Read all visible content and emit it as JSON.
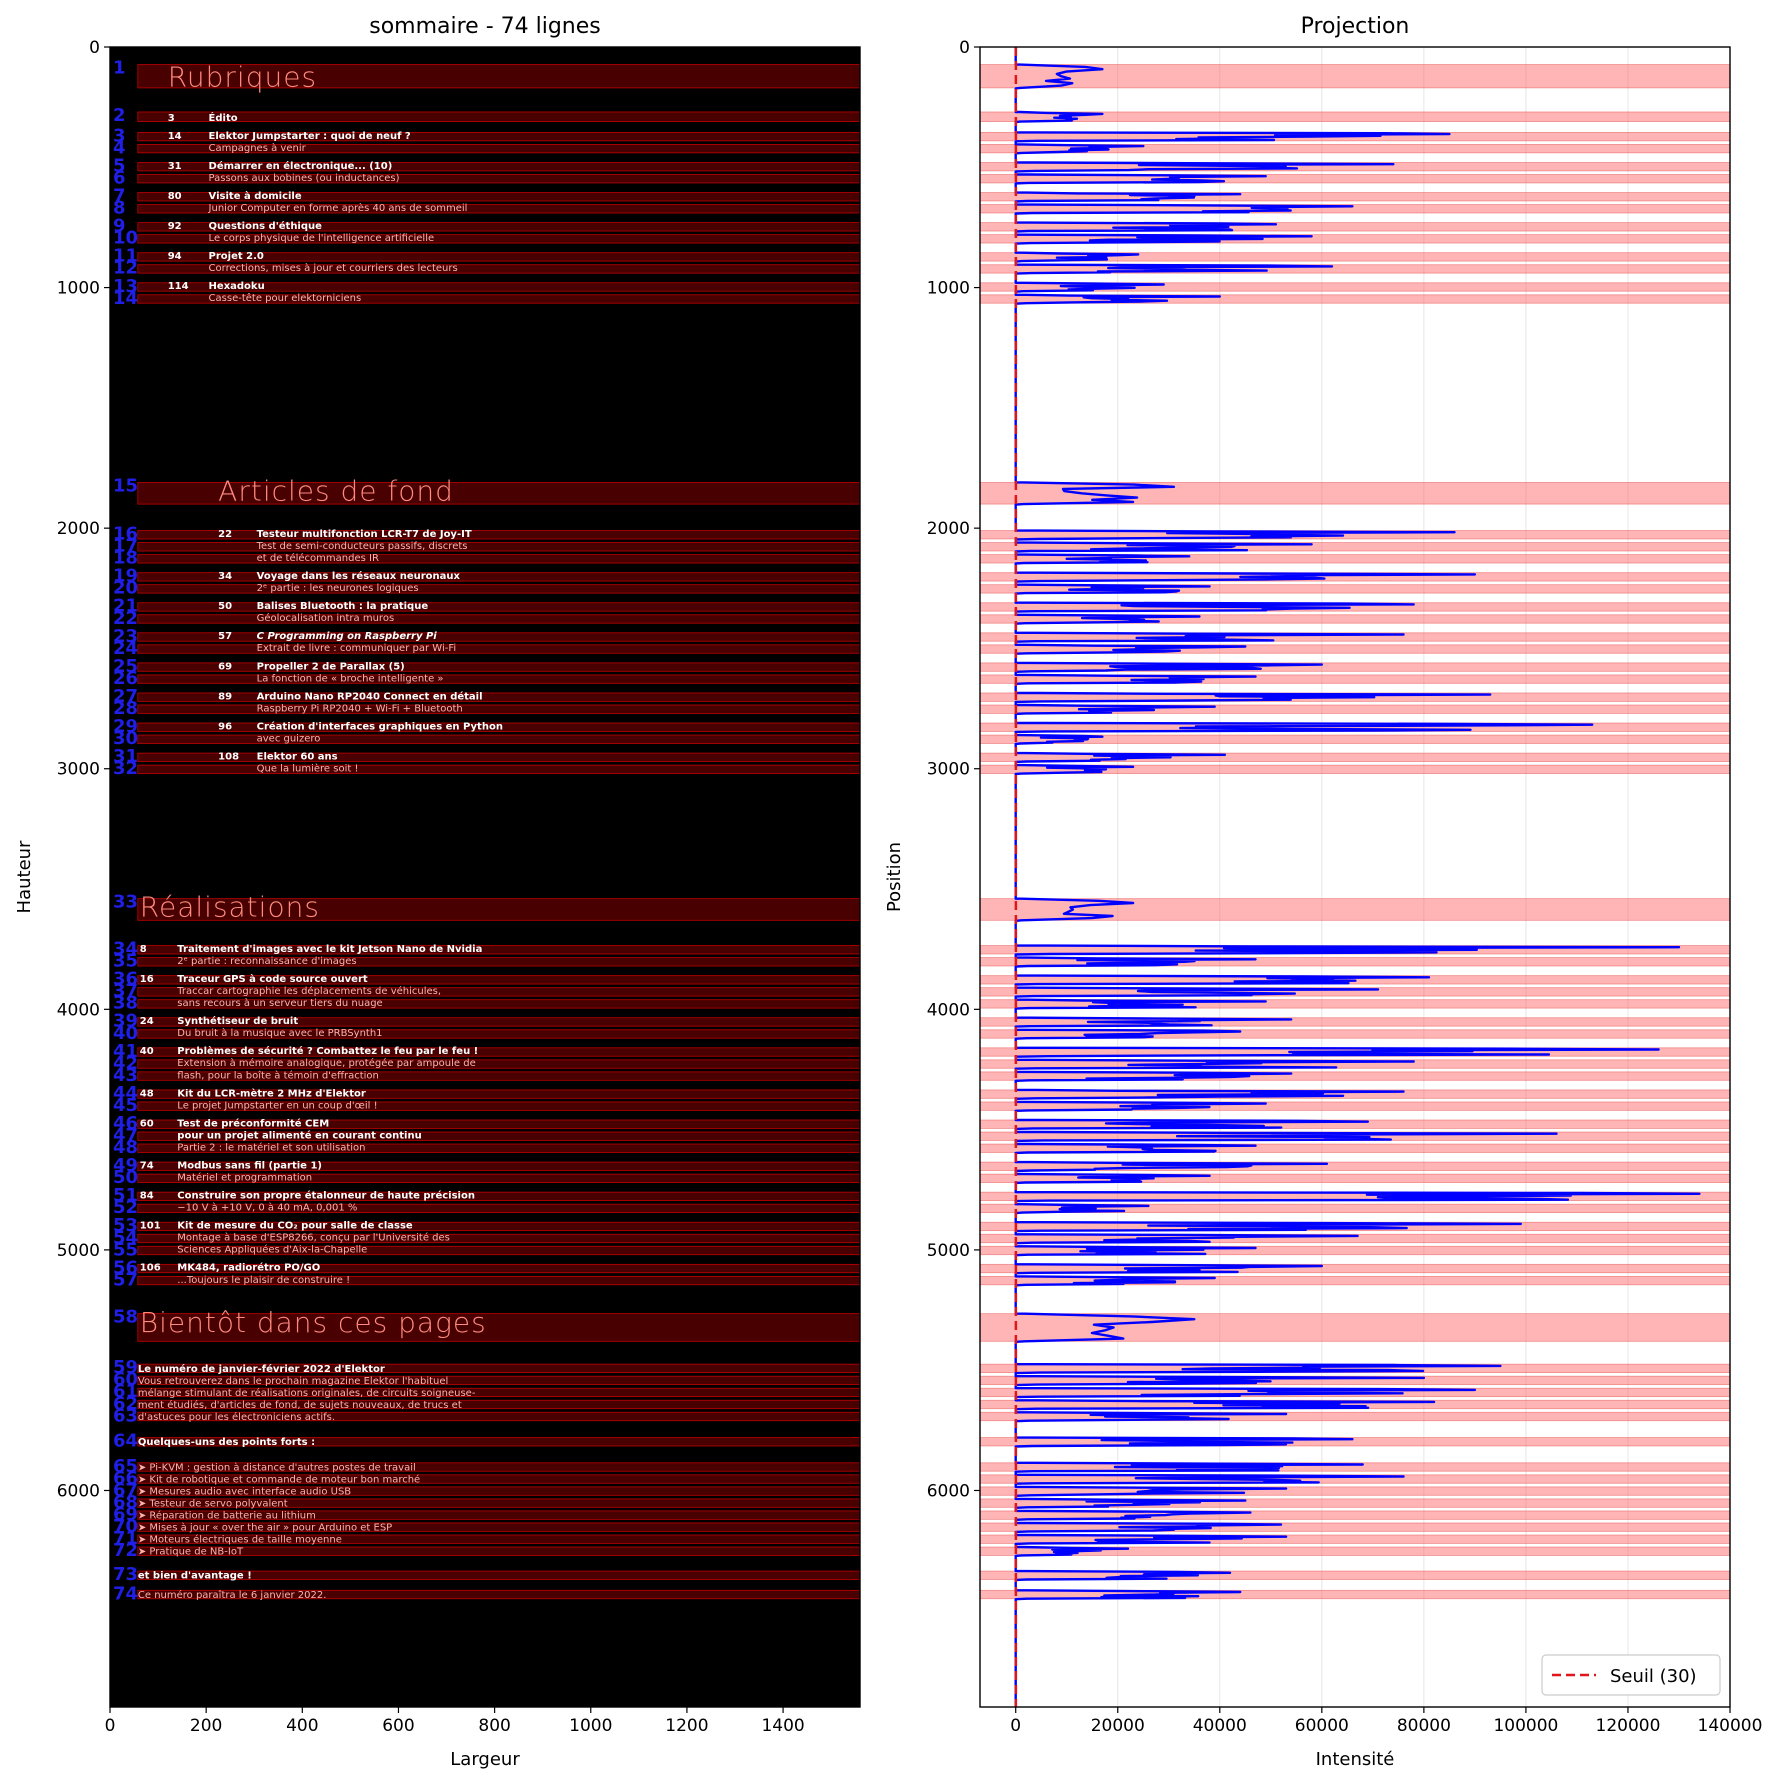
{
  "left_panel": {
    "title": "sommaire - 74 lignes",
    "xlabel": "Largeur",
    "ylabel": "Hauteur",
    "xlim": [
      0,
      1560
    ],
    "ylim": [
      6900,
      0
    ],
    "xticks": [
      0,
      200,
      400,
      600,
      800,
      1000,
      1200,
      1400
    ],
    "yticks": [
      0,
      1000,
      2000,
      3000,
      4000,
      5000,
      6000
    ],
    "sections": [
      {
        "text": "Rubriques",
        "x": 120,
        "y": 122
      },
      {
        "text": "Articles de fond",
        "x": 225,
        "y": 1843
      },
      {
        "text": "Réalisations",
        "x": 62,
        "y": 3573
      },
      {
        "text": "Bientôt dans ces pages",
        "x": 62,
        "y": 5300
      }
    ],
    "toc": [
      {
        "x": 120,
        "y": 290,
        "text": "3",
        "bold": true
      },
      {
        "x": 205,
        "y": 290,
        "text": "Édito",
        "bold": true
      },
      {
        "x": 120,
        "y": 365,
        "text": "14",
        "bold": true
      },
      {
        "x": 205,
        "y": 365,
        "text": "Elektor Jumpstarter : quoi de neuf ?",
        "bold": true
      },
      {
        "x": 205,
        "y": 415,
        "text": "Campagnes à venir"
      },
      {
        "x": 120,
        "y": 490,
        "text": "31",
        "bold": true
      },
      {
        "x": 205,
        "y": 490,
        "text": "Démarrer en électronique... (10)",
        "bold": true
      },
      {
        "x": 205,
        "y": 540,
        "text": "Passons aux bobines (ou inductances)"
      },
      {
        "x": 120,
        "y": 615,
        "text": "80",
        "bold": true
      },
      {
        "x": 205,
        "y": 615,
        "text": "Visite à domicile",
        "bold": true
      },
      {
        "x": 205,
        "y": 665,
        "text": "Junior Computer en forme après 40 ans de sommeil"
      },
      {
        "x": 120,
        "y": 740,
        "text": "92",
        "bold": true
      },
      {
        "x": 205,
        "y": 740,
        "text": "Questions d'éthique",
        "bold": true
      },
      {
        "x": 205,
        "y": 790,
        "text": "Le corps physique de l'intelligence artificielle"
      },
      {
        "x": 120,
        "y": 865,
        "text": "94",
        "bold": true
      },
      {
        "x": 205,
        "y": 865,
        "text": "Projet 2.0",
        "bold": true
      },
      {
        "x": 205,
        "y": 915,
        "text": "Corrections, mises à jour et courriers des lecteurs"
      },
      {
        "x": 120,
        "y": 990,
        "text": "114",
        "bold": true
      },
      {
        "x": 205,
        "y": 990,
        "text": "Hexadoku",
        "bold": true
      },
      {
        "x": 205,
        "y": 1040,
        "text": "Casse-tête pour elektorniciens"
      },
      {
        "x": 225,
        "y": 2020,
        "text": "22",
        "bold": true
      },
      {
        "x": 305,
        "y": 2020,
        "text": "Testeur multifonction LCR-T7 de Joy-IT",
        "bold": true
      },
      {
        "x": 305,
        "y": 2070,
        "text": "Test de semi-conducteurs passifs, discrets"
      },
      {
        "x": 305,
        "y": 2120,
        "text": "et de télécommandes IR"
      },
      {
        "x": 225,
        "y": 2195,
        "text": "34",
        "bold": true
      },
      {
        "x": 305,
        "y": 2195,
        "text": "Voyage dans les réseaux neuronaux",
        "bold": true
      },
      {
        "x": 305,
        "y": 2245,
        "text": "2ᵉ partie : les neurones logiques"
      },
      {
        "x": 225,
        "y": 2320,
        "text": "50",
        "bold": true
      },
      {
        "x": 305,
        "y": 2320,
        "text": "Balises Bluetooth : la pratique",
        "bold": true
      },
      {
        "x": 305,
        "y": 2370,
        "text": "Géolocalisation intra muros"
      },
      {
        "x": 225,
        "y": 2445,
        "text": "57",
        "bold": true
      },
      {
        "x": 305,
        "y": 2445,
        "text": "C Programming on Raspberry Pi",
        "bold": true,
        "italic": true
      },
      {
        "x": 305,
        "y": 2495,
        "text": "Extrait de livre : communiquer par Wi-Fi"
      },
      {
        "x": 225,
        "y": 2570,
        "text": "69",
        "bold": true
      },
      {
        "x": 305,
        "y": 2570,
        "text": "Propeller 2 de Parallax (5)",
        "bold": true
      },
      {
        "x": 305,
        "y": 2620,
        "text": "La fonction de « broche intelligente »"
      },
      {
        "x": 225,
        "y": 2695,
        "text": "89",
        "bold": true
      },
      {
        "x": 305,
        "y": 2695,
        "text": "Arduino Nano RP2040 Connect en détail",
        "bold": true
      },
      {
        "x": 305,
        "y": 2745,
        "text": "Raspberry Pi RP2040 + Wi-Fi + Bluetooth"
      },
      {
        "x": 225,
        "y": 2820,
        "text": "96",
        "bold": true
      },
      {
        "x": 305,
        "y": 2820,
        "text": "Création d'interfaces graphiques en Python",
        "bold": true
      },
      {
        "x": 305,
        "y": 2870,
        "text": "avec guizero"
      },
      {
        "x": 225,
        "y": 2945,
        "text": "108",
        "bold": true
      },
      {
        "x": 305,
        "y": 2945,
        "text": "Elektor 60 ans",
        "bold": true
      },
      {
        "x": 305,
        "y": 2995,
        "text": "Que la lumière soit !"
      },
      {
        "x": 62,
        "y": 3745,
        "text": "8",
        "bold": true
      },
      {
        "x": 140,
        "y": 3745,
        "text": "Traitement d'images avec le kit Jetson Nano de Nvidia",
        "bold": true
      },
      {
        "x": 140,
        "y": 3795,
        "text": "2ᵉ partie : reconnaissance d'images"
      },
      {
        "x": 62,
        "y": 3870,
        "text": "16",
        "bold": true
      },
      {
        "x": 140,
        "y": 3870,
        "text": "Traceur GPS à code source ouvert",
        "bold": true
      },
      {
        "x": 140,
        "y": 3920,
        "text": "Traccar cartographie les déplacements de véhicules,"
      },
      {
        "x": 140,
        "y": 3970,
        "text": "sans recours à un serveur tiers du nuage"
      },
      {
        "x": 62,
        "y": 4045,
        "text": "24",
        "bold": true
      },
      {
        "x": 140,
        "y": 4045,
        "text": "Synthétiseur de bruit",
        "bold": true
      },
      {
        "x": 140,
        "y": 4095,
        "text": "Du bruit à la musique avec le PRBSynth1"
      },
      {
        "x": 62,
        "y": 4170,
        "text": "40",
        "bold": true
      },
      {
        "x": 140,
        "y": 4170,
        "text": "Problèmes de sécurité ? Combattez le feu par le feu !",
        "bold": true
      },
      {
        "x": 140,
        "y": 4220,
        "text": "Extension à mémoire analogique, protégée par ampoule de"
      },
      {
        "x": 140,
        "y": 4270,
        "text": "flash, pour la boîte à témoin d'effraction"
      },
      {
        "x": 62,
        "y": 4345,
        "text": "48",
        "bold": true
      },
      {
        "x": 140,
        "y": 4345,
        "text": "Kit du LCR-mètre 2 MHz d'Elektor",
        "bold": true
      },
      {
        "x": 140,
        "y": 4395,
        "text": "Le projet Jumpstarter en un coup d'œil !"
      },
      {
        "x": 62,
        "y": 4470,
        "text": "60",
        "bold": true
      },
      {
        "x": 140,
        "y": 4470,
        "text": "Test de préconformité CEM",
        "bold": true
      },
      {
        "x": 140,
        "y": 4520,
        "text": "pour un projet alimenté en courant continu",
        "bold": true
      },
      {
        "x": 140,
        "y": 4570,
        "text": "Partie 2 : le matériel et son utilisation"
      },
      {
        "x": 62,
        "y": 4645,
        "text": "74",
        "bold": true
      },
      {
        "x": 140,
        "y": 4645,
        "text": "Modbus sans fil (partie 1)",
        "bold": true
      },
      {
        "x": 140,
        "y": 4695,
        "text": "Matériel et programmation"
      },
      {
        "x": 62,
        "y": 4770,
        "text": "84",
        "bold": true
      },
      {
        "x": 140,
        "y": 4770,
        "text": "Construire son propre étalonneur de haute précision",
        "bold": true
      },
      {
        "x": 140,
        "y": 4820,
        "text": "−10 V à +10 V, 0 à 40 mA, 0,001 %"
      },
      {
        "x": 62,
        "y": 4895,
        "text": "101",
        "bold": true
      },
      {
        "x": 140,
        "y": 4895,
        "text": "Kit de mesure du CO₂ pour salle de classe",
        "bold": true
      },
      {
        "x": 140,
        "y": 4945,
        "text": "Montage à base d'ESP8266, conçu par l'Université des"
      },
      {
        "x": 140,
        "y": 4995,
        "text": "Sciences Appliquées d'Aix-la-Chapelle"
      },
      {
        "x": 62,
        "y": 5070,
        "text": "106",
        "bold": true
      },
      {
        "x": 140,
        "y": 5070,
        "text": "MK484, radiorétro PO/GO",
        "bold": true
      },
      {
        "x": 140,
        "y": 5120,
        "text": "...Toujours le plaisir de construire !"
      },
      {
        "x": 58,
        "y": 5490,
        "text": "Le numéro de janvier-février 2022 d'Elektor",
        "bold": true
      },
      {
        "x": 58,
        "y": 5540,
        "text": "Vous retrouverez dans le prochain magazine Elektor l'habituel"
      },
      {
        "x": 58,
        "y": 5590,
        "text": "mélange stimulant de réalisations originales, de circuits soigneuse-"
      },
      {
        "x": 58,
        "y": 5640,
        "text": "ment étudiés, d'articles de fond, de sujets nouveaux, de trucs et"
      },
      {
        "x": 58,
        "y": 5690,
        "text": "d'astuces pour les électroniciens actifs."
      },
      {
        "x": 58,
        "y": 5795,
        "text": "Quelques-uns des points forts :",
        "bold": true
      },
      {
        "x": 58,
        "y": 5900,
        "text": "➤  Pi-KVM : gestion à distance d'autres postes de travail"
      },
      {
        "x": 58,
        "y": 5950,
        "text": "➤  Kit de robotique et commande de moteur bon marché"
      },
      {
        "x": 58,
        "y": 6000,
        "text": "➤  Mesures audio avec interface audio USB"
      },
      {
        "x": 58,
        "y": 6050,
        "text": "➤  Testeur de servo polyvalent"
      },
      {
        "x": 58,
        "y": 6100,
        "text": "➤  Réparation de batterie au lithium"
      },
      {
        "x": 58,
        "y": 6150,
        "text": "➤  Mises à jour « over the air » pour Arduino et ESP"
      },
      {
        "x": 58,
        "y": 6200,
        "text": "➤  Moteurs électriques de taille moyenne"
      },
      {
        "x": 58,
        "y": 6250,
        "text": "➤  Pratique de NB-IoT"
      },
      {
        "x": 58,
        "y": 6350,
        "text": "et bien d'avantage !",
        "bold": true
      },
      {
        "x": 58,
        "y": 6430,
        "text": "Ce numéro paraîtra le 6 janvier 2022."
      }
    ],
    "box_ranges": [
      [
        62,
        1560
      ]
    ]
  },
  "right_panel": {
    "title": "Projection",
    "xlabel": "Intensité",
    "ylabel": "Position",
    "xlim": [
      -7000,
      140000
    ],
    "ylim": [
      6900,
      0
    ],
    "xticks": [
      0,
      20000,
      40000,
      60000,
      80000,
      100000,
      120000,
      140000
    ],
    "yticks": [
      0,
      1000,
      2000,
      3000,
      4000,
      5000,
      6000
    ],
    "legend": "Seuil (30)"
  },
  "chart_data": {
    "type": "line",
    "threshold": 30,
    "line_bands": [
      [
        73,
        170
      ],
      [
        270,
        310
      ],
      [
        355,
        390
      ],
      [
        405,
        440
      ],
      [
        480,
        515
      ],
      [
        530,
        565
      ],
      [
        605,
        640
      ],
      [
        655,
        690
      ],
      [
        730,
        765
      ],
      [
        780,
        815
      ],
      [
        855,
        890
      ],
      [
        905,
        940
      ],
      [
        980,
        1015
      ],
      [
        1030,
        1065
      ],
      [
        1810,
        1900
      ],
      [
        2010,
        2045
      ],
      [
        2060,
        2095
      ],
      [
        2110,
        2145
      ],
      [
        2185,
        2220
      ],
      [
        2235,
        2270
      ],
      [
        2310,
        2345
      ],
      [
        2360,
        2395
      ],
      [
        2435,
        2470
      ],
      [
        2485,
        2520
      ],
      [
        2560,
        2595
      ],
      [
        2610,
        2645
      ],
      [
        2685,
        2720
      ],
      [
        2735,
        2770
      ],
      [
        2810,
        2845
      ],
      [
        2860,
        2895
      ],
      [
        2935,
        2970
      ],
      [
        2985,
        3020
      ],
      [
        3540,
        3630
      ],
      [
        3735,
        3770
      ],
      [
        3785,
        3820
      ],
      [
        3860,
        3895
      ],
      [
        3910,
        3945
      ],
      [
        3960,
        3995
      ],
      [
        4035,
        4070
      ],
      [
        4085,
        4120
      ],
      [
        4160,
        4195
      ],
      [
        4210,
        4245
      ],
      [
        4260,
        4295
      ],
      [
        4335,
        4370
      ],
      [
        4385,
        4420
      ],
      [
        4460,
        4495
      ],
      [
        4510,
        4545
      ],
      [
        4560,
        4595
      ],
      [
        4635,
        4670
      ],
      [
        4685,
        4720
      ],
      [
        4760,
        4795
      ],
      [
        4810,
        4845
      ],
      [
        4885,
        4920
      ],
      [
        4935,
        4970
      ],
      [
        4985,
        5020
      ],
      [
        5060,
        5095
      ],
      [
        5110,
        5145
      ],
      [
        5265,
        5380
      ],
      [
        5475,
        5510
      ],
      [
        5525,
        5560
      ],
      [
        5575,
        5610
      ],
      [
        5625,
        5660
      ],
      [
        5675,
        5710
      ],
      [
        5780,
        5815
      ],
      [
        5885,
        5920
      ],
      [
        5935,
        5970
      ],
      [
        5985,
        6020
      ],
      [
        6035,
        6070
      ],
      [
        6085,
        6120
      ],
      [
        6135,
        6170
      ],
      [
        6185,
        6220
      ],
      [
        6235,
        6270
      ],
      [
        6335,
        6370
      ],
      [
        6415,
        6450
      ]
    ],
    "band_labels": [
      "1",
      "2",
      "3",
      "4",
      "5",
      "6",
      "7",
      "8",
      "9",
      "10",
      "11",
      "12",
      "13",
      "14",
      "15",
      "16",
      "17",
      "18",
      "19",
      "20",
      "21",
      "22",
      "23",
      "24",
      "25",
      "26",
      "27",
      "28",
      "29",
      "30",
      "31",
      "32",
      "33",
      "34",
      "35",
      "36",
      "37",
      "38",
      "39",
      "40",
      "41",
      "42",
      "43",
      "44",
      "45",
      "46",
      "47",
      "48",
      "49",
      "50",
      "51",
      "52",
      "53",
      "54",
      "55",
      "56",
      "57",
      "58",
      "59",
      "60",
      "61",
      "62",
      "63",
      "64",
      "65",
      "66",
      "67",
      "68",
      "69",
      "70",
      "71",
      "72",
      "73",
      "74"
    ],
    "band_peaks": [
      17000,
      17000,
      85000,
      25000,
      74000,
      49000,
      44000,
      66000,
      51000,
      58000,
      24000,
      62000,
      29000,
      40000,
      31000,
      86000,
      58000,
      34000,
      90000,
      38000,
      78000,
      36000,
      76000,
      45000,
      60000,
      47000,
      93000,
      39000,
      113000,
      17000,
      41000,
      23000,
      23000,
      130000,
      47000,
      81000,
      71000,
      49000,
      54000,
      44000,
      126000,
      78000,
      54000,
      76000,
      49000,
      69000,
      106000,
      47000,
      61000,
      38000,
      134000,
      26000,
      99000,
      67000,
      47000,
      60000,
      39000,
      35000,
      95000,
      80000,
      90000,
      82000,
      53000,
      66000,
      68000,
      76000,
      53000,
      45000,
      46000,
      52000,
      53000,
      22000,
      42000,
      44000
    ]
  }
}
